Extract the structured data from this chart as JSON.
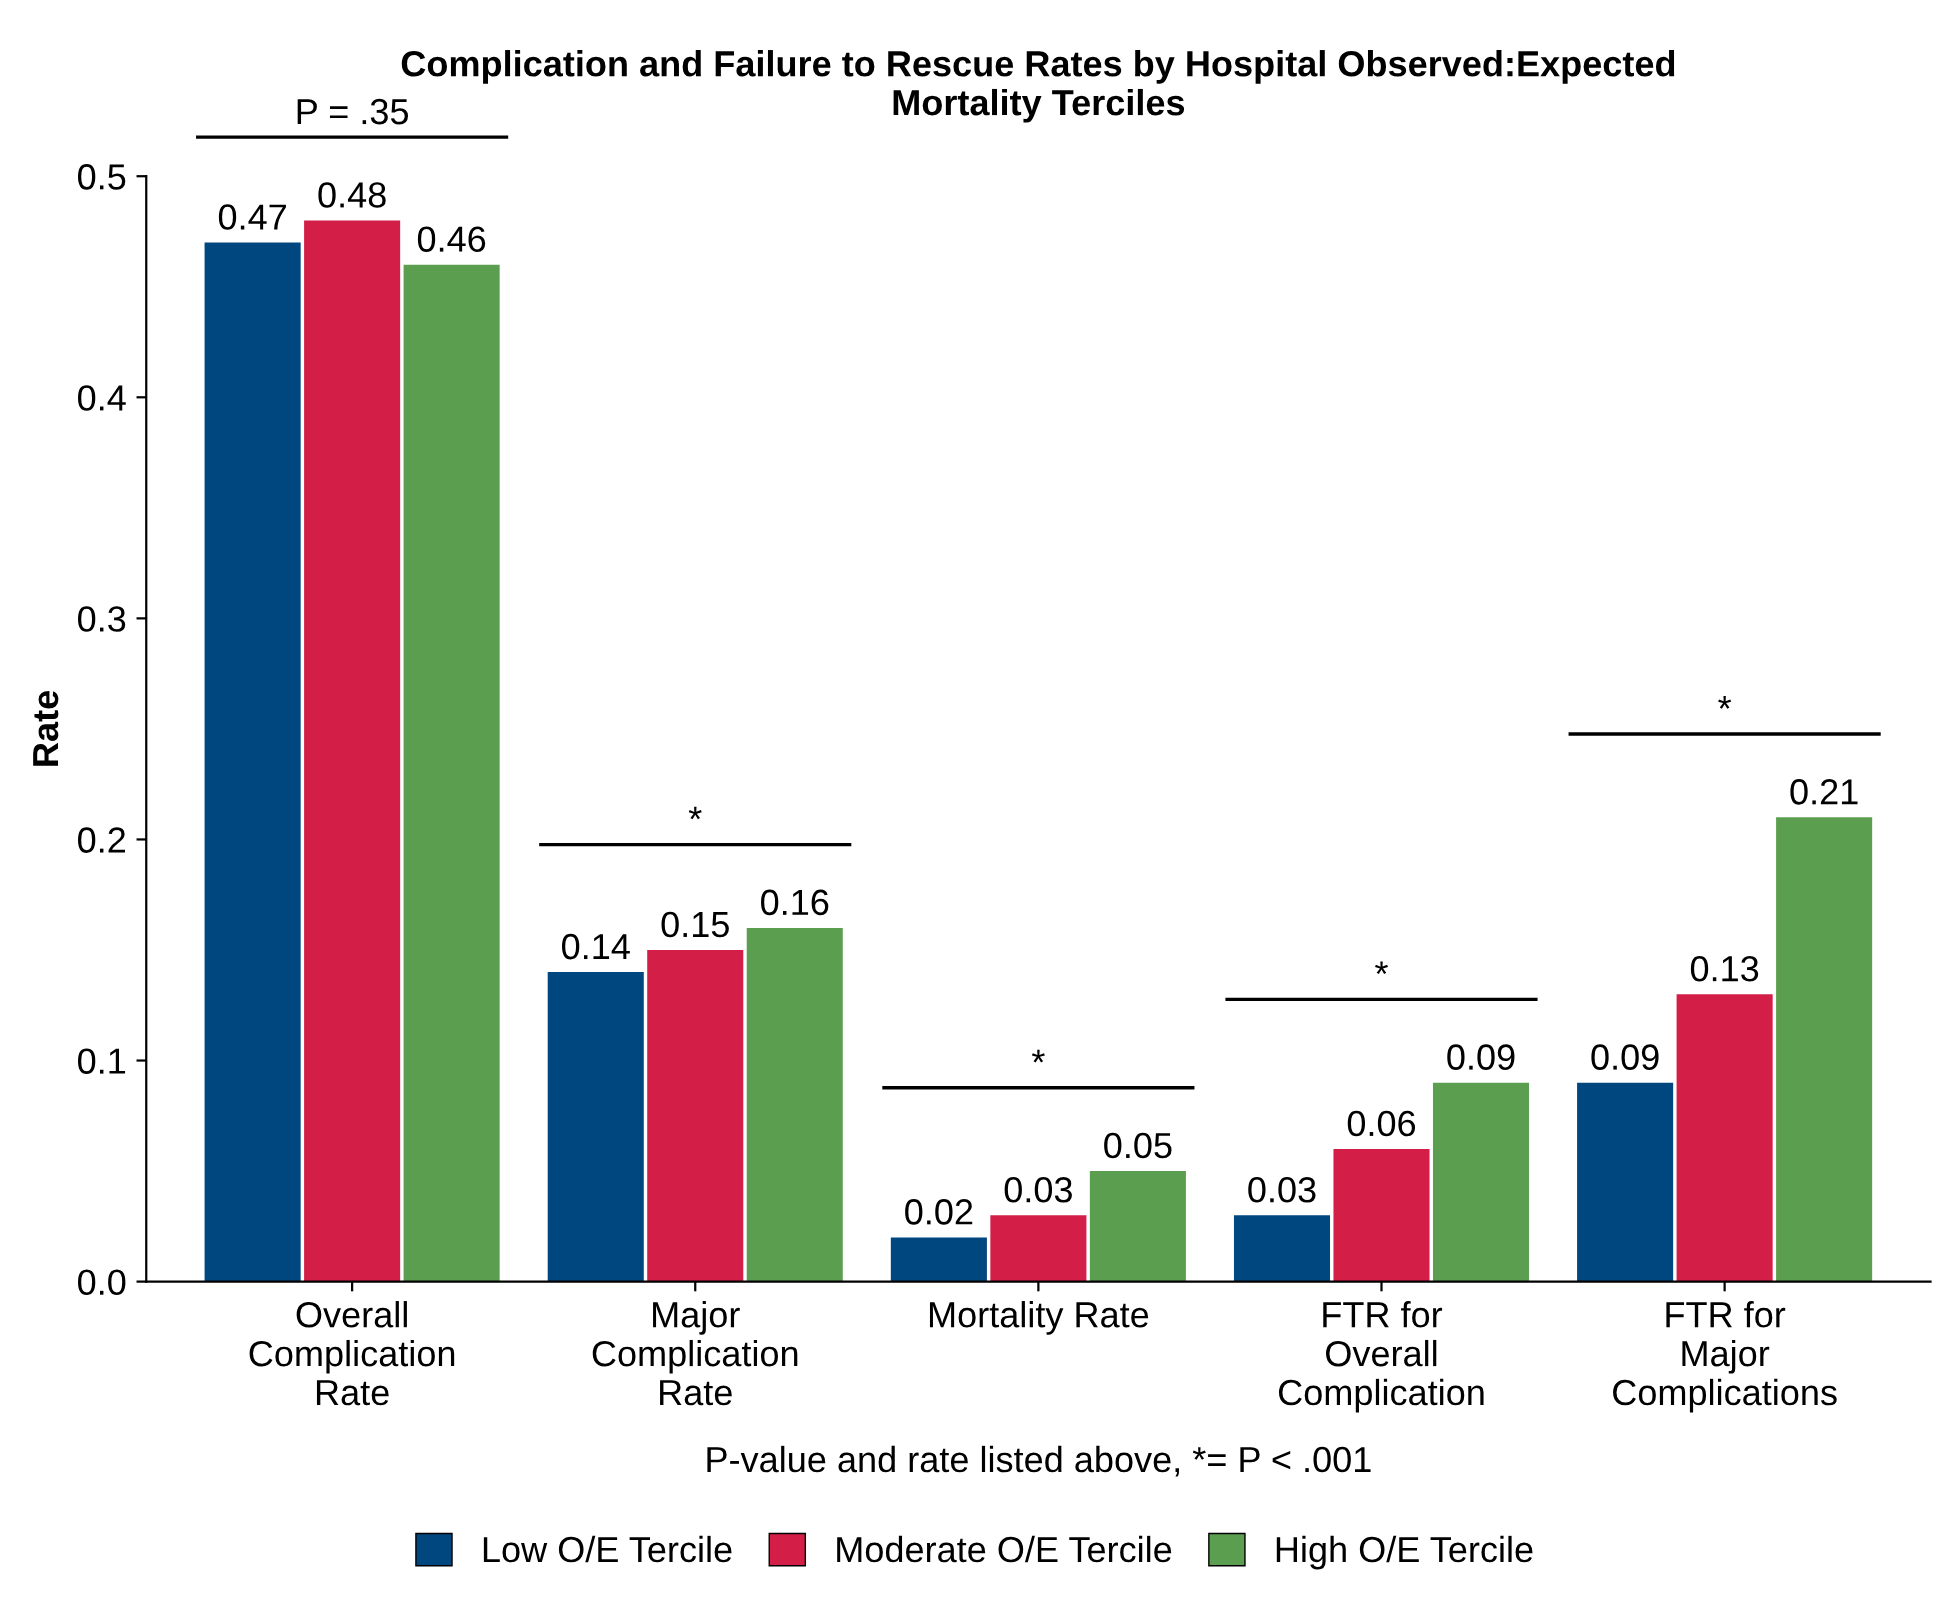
{
  "chart_data": {
    "type": "bar",
    "title": "Complication and Failure to Rescue Rates by Hospital Observed:Expected\nMortality Terciles",
    "xlabel": "P-value and rate listed above, *= P < .001",
    "ylabel": "Rate",
    "categories": [
      "Overall\nComplication\nRate",
      "Major\nComplication\nRate",
      "Mortality Rate",
      "FTR for\nOverall\nComplication",
      "FTR for\nMajor\nComplications"
    ],
    "series": [
      {
        "name": "Low O/E Tercile",
        "color": "#00467f",
        "values": [
          0.47,
          0.14,
          0.02,
          0.03,
          0.09
        ]
      },
      {
        "name": "Moderate O/E Tercile",
        "color": "#d31f47",
        "values": [
          0.48,
          0.15,
          0.03,
          0.06,
          0.13
        ]
      },
      {
        "name": "High O/E Tercile",
        "color": "#5c9e4f",
        "values": [
          0.46,
          0.16,
          0.05,
          0.09,
          0.21
        ]
      }
    ],
    "ylim": [
      0,
      0.5
    ],
    "yticks": [
      {
        "value": 0,
        "label": "0.0"
      },
      0.1,
      0.2,
      0.3,
      0.4,
      0.5
    ],
    "data_labels": true,
    "legend": "bottom",
    "grid": false,
    "annotations": [
      "P = .35",
      "*",
      "*",
      "*",
      "*"
    ]
  }
}
